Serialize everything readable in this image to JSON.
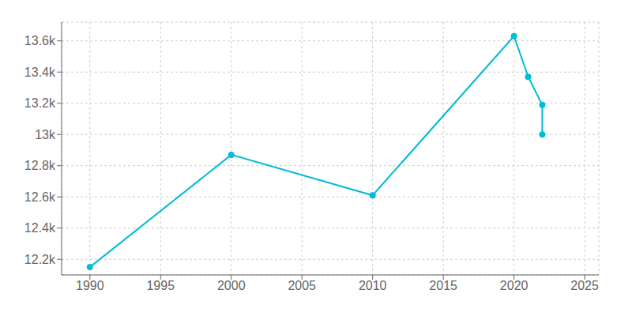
{
  "chart_data": {
    "type": "line",
    "x": [
      1990,
      2000,
      2010,
      2020,
      2021,
      2022,
      2022
    ],
    "values": [
      12150,
      12870,
      12610,
      13630,
      13370,
      13190,
      13000
    ],
    "color": "#00BCD4",
    "marker": "circle",
    "xlim": [
      1988,
      2026
    ],
    "xticks": [
      1990,
      1995,
      2000,
      2005,
      2010,
      2015,
      2020,
      2025
    ],
    "ylim": [
      12100,
      13720
    ],
    "yticks": [
      {
        "value": 12200,
        "label": "12.2k"
      },
      {
        "value": 12400,
        "label": "12.4k"
      },
      {
        "value": 12600,
        "label": "12.6k"
      },
      {
        "value": 12800,
        "label": "12.8k"
      },
      {
        "value": 13000,
        "label": "13k"
      },
      {
        "value": 13200,
        "label": "13.2k"
      },
      {
        "value": 13400,
        "label": "13.4k"
      },
      {
        "value": 13600,
        "label": "13.6k"
      }
    ],
    "grid": true
  }
}
